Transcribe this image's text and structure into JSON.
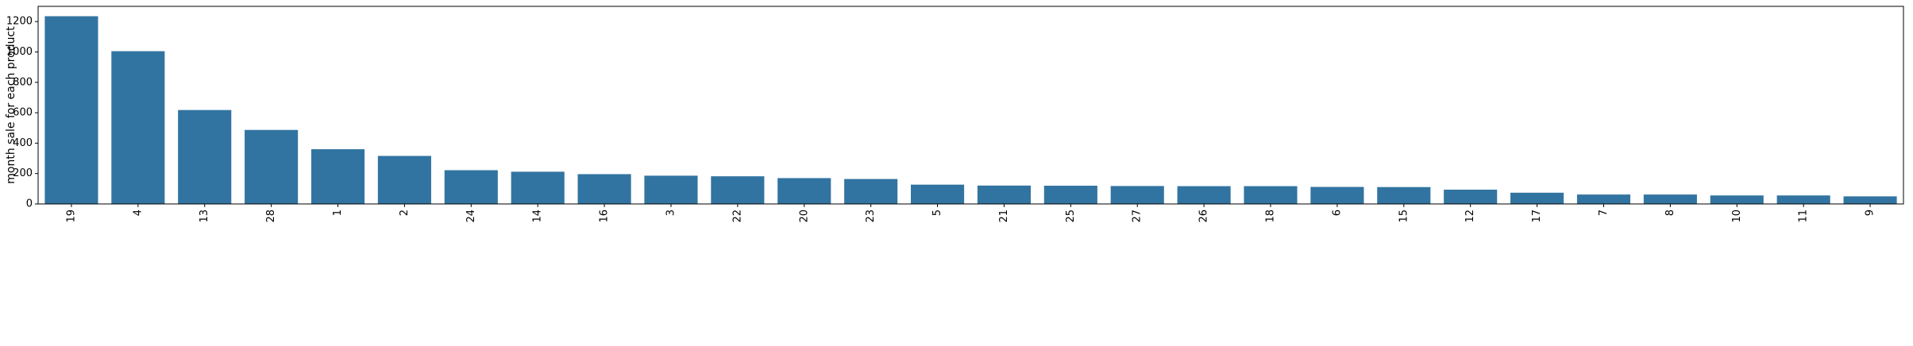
{
  "chart_data": {
    "type": "bar",
    "title": "",
    "xlabel": "",
    "ylabel": "month sale for each product",
    "categories": [
      "19",
      "4",
      "13",
      "28",
      "1",
      "2",
      "24",
      "14",
      "16",
      "3",
      "22",
      "20",
      "23",
      "5",
      "21",
      "25",
      "27",
      "26",
      "18",
      "6",
      "15",
      "12",
      "17",
      "7",
      "8",
      "10",
      "11",
      "9"
    ],
    "values": [
      1235,
      1005,
      618,
      487,
      360,
      316,
      222,
      212,
      196,
      186,
      182,
      170,
      164,
      127,
      121,
      120,
      118,
      117,
      117,
      112,
      111,
      94,
      74,
      62,
      62,
      56,
      56,
      50
    ],
    "ylim": [
      0,
      1300
    ],
    "yticks": [
      0,
      200,
      400,
      600,
      800,
      1000,
      1200
    ],
    "bar_color": "#3274a1",
    "grid": false,
    "legend": "none"
  }
}
